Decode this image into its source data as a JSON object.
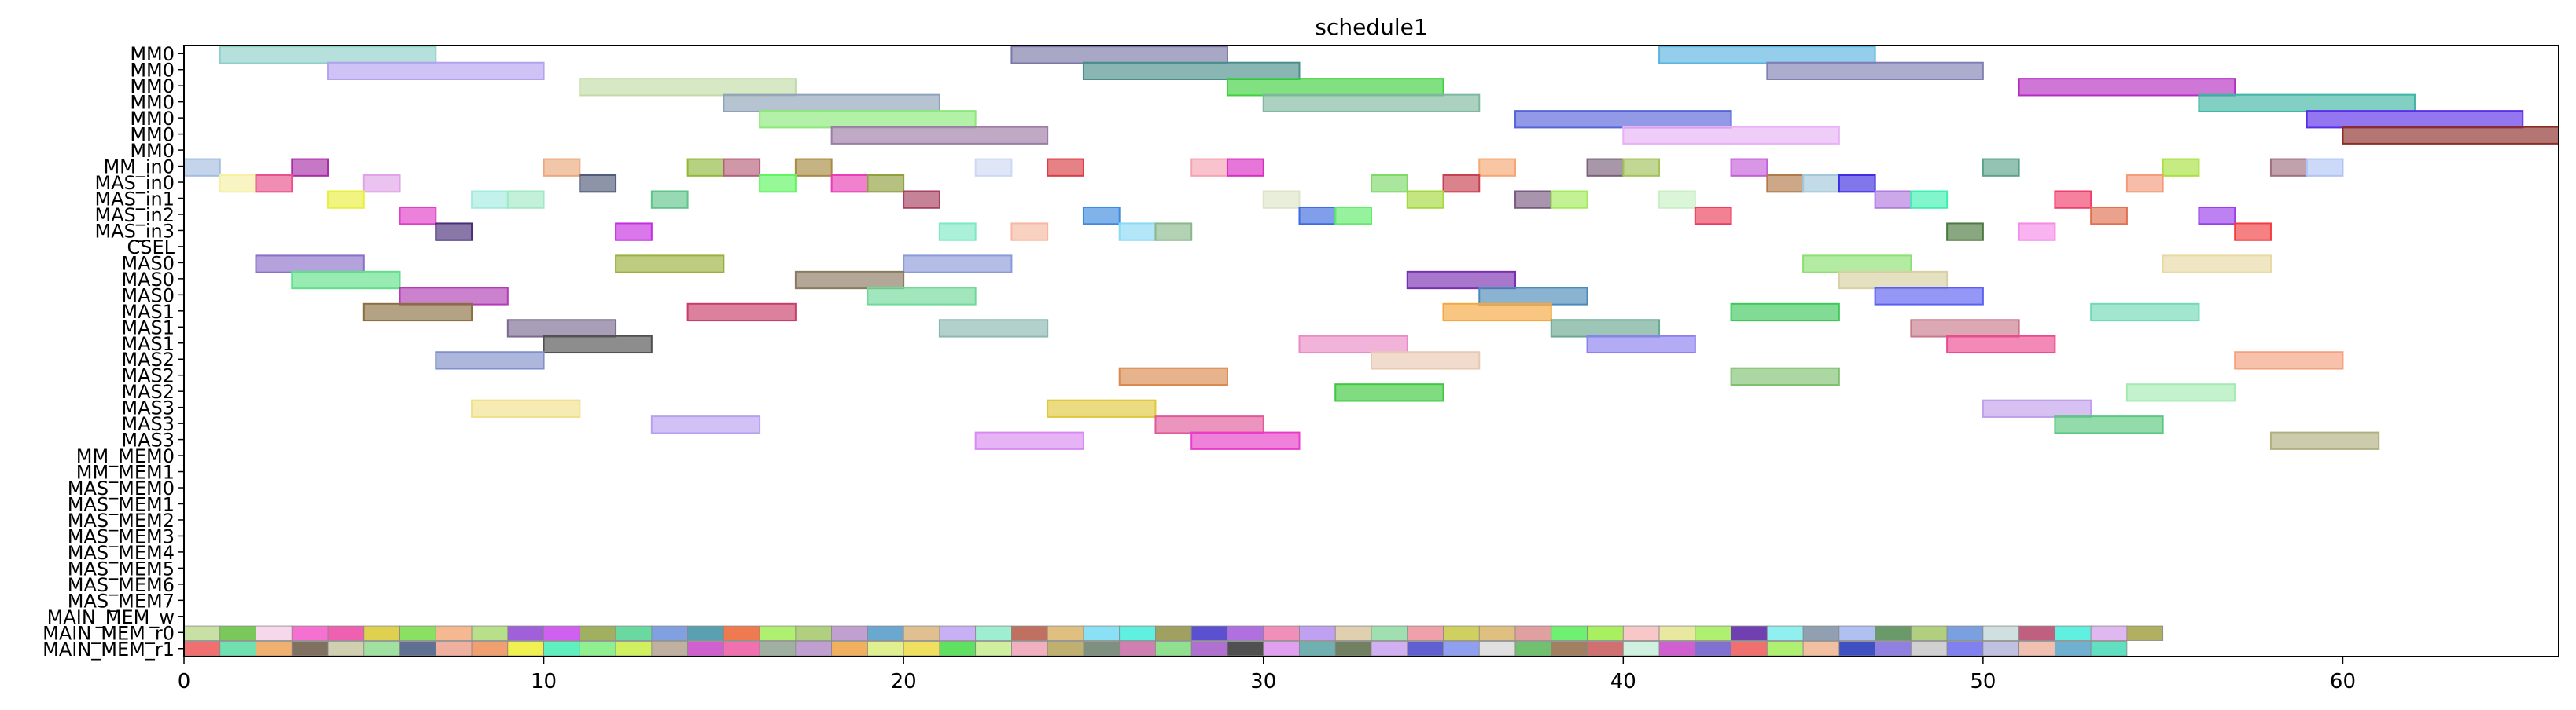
{
  "chart_data": {
    "type": "gantt",
    "title": "schedule1",
    "xlabel": "",
    "ylabel": "",
    "xlim": [
      0,
      66
    ],
    "x_ticks": [
      0,
      10,
      20,
      30,
      40,
      50,
      60
    ],
    "grid": false,
    "rows": [
      "MM0",
      "MM0",
      "MM0",
      "MM0",
      "MM0",
      "MM0",
      "MM0",
      "MM_in0",
      "MAS_in0",
      "MAS_in1",
      "MAS_in2",
      "MAS_in3",
      "CSEL",
      "MAS0",
      "MAS0",
      "MAS0",
      "MAS1",
      "MAS1",
      "MAS1",
      "MAS2",
      "MAS2",
      "MAS2",
      "MAS3",
      "MAS3",
      "MAS3",
      "MM_MEM0",
      "MM_MEM1",
      "MAS_MEM0",
      "MAS_MEM1",
      "MAS_MEM2",
      "MAS_MEM3",
      "MAS_MEM4",
      "MAS_MEM5",
      "MAS_MEM6",
      "MAS_MEM7",
      "MAIN_MEM_w",
      "MAIN_MEM_r0",
      "MAIN_MEM_r1"
    ],
    "tasks": [
      {
        "row": 0,
        "start": 1,
        "end": 7,
        "color": "#8ecfc9"
      },
      {
        "row": 0,
        "start": 23,
        "end": 29,
        "color": "#7a78a8"
      },
      {
        "row": 0,
        "start": 41,
        "end": 47,
        "color": "#5ab4e0"
      },
      {
        "row": 1,
        "start": 4,
        "end": 10,
        "color": "#b3a3ee"
      },
      {
        "row": 1,
        "start": 25,
        "end": 31,
        "color": "#4a8f8a"
      },
      {
        "row": 1,
        "start": 44,
        "end": 50,
        "color": "#8080b4"
      },
      {
        "row": 2,
        "start": 11,
        "end": 17,
        "color": "#c2dba6"
      },
      {
        "row": 2,
        "start": 29,
        "end": 35,
        "color": "#3dd13d"
      },
      {
        "row": 2,
        "start": 51,
        "end": 57,
        "color": "#b52ec2"
      },
      {
        "row": 3,
        "start": 15,
        "end": 21,
        "color": "#8fa3b8"
      },
      {
        "row": 3,
        "start": 30,
        "end": 36,
        "color": "#7fb8a0"
      },
      {
        "row": 3,
        "start": 56,
        "end": 62,
        "color": "#3fb5a3"
      },
      {
        "row": 4,
        "start": 16,
        "end": 22,
        "color": "#8be87a"
      },
      {
        "row": 4,
        "start": 37,
        "end": 43,
        "color": "#5763d9"
      },
      {
        "row": 4,
        "start": 59,
        "end": 65,
        "color": "#5a2ee8"
      },
      {
        "row": 5,
        "start": 18,
        "end": 24,
        "color": "#9c7ba6"
      },
      {
        "row": 5,
        "start": 40,
        "end": 46,
        "color": "#e8b0f5"
      },
      {
        "row": 5,
        "start": 60,
        "end": 66,
        "color": "#8c2c26"
      },
      {
        "row": 7,
        "start": 0,
        "end": 1,
        "color": "#a3bde0"
      },
      {
        "row": 7,
        "start": 3,
        "end": 4,
        "color": "#a82ea8"
      },
      {
        "row": 7,
        "start": 10,
        "end": 11,
        "color": "#eba87a"
      },
      {
        "row": 7,
        "start": 14,
        "end": 15,
        "color": "#8fb83a"
      },
      {
        "row": 7,
        "start": 15,
        "end": 16,
        "color": "#b5607a"
      },
      {
        "row": 7,
        "start": 17,
        "end": 18,
        "color": "#a88a40"
      },
      {
        "row": 7,
        "start": 22,
        "end": 23,
        "color": "#ccd9f5"
      },
      {
        "row": 7,
        "start": 24,
        "end": 25,
        "color": "#d93d45"
      },
      {
        "row": 7,
        "start": 28,
        "end": 29,
        "color": "#f5a3b0"
      },
      {
        "row": 7,
        "start": 29,
        "end": 30,
        "color": "#d92ec4"
      },
      {
        "row": 7,
        "start": 36,
        "end": 37,
        "color": "#f5a870"
      },
      {
        "row": 7,
        "start": 39,
        "end": 40,
        "color": "#7a607a"
      },
      {
        "row": 7,
        "start": 40,
        "end": 41,
        "color": "#a3c25a"
      },
      {
        "row": 7,
        "start": 43,
        "end": 44,
        "color": "#c45ed9"
      },
      {
        "row": 7,
        "start": 50,
        "end": 51,
        "color": "#5aa38a"
      },
      {
        "row": 7,
        "start": 55,
        "end": 56,
        "color": "#a8e03d"
      },
      {
        "row": 7,
        "start": 58,
        "end": 59,
        "color": "#a07080"
      },
      {
        "row": 7,
        "start": 59,
        "end": 60,
        "color": "#b0c4f5"
      },
      {
        "row": 8,
        "start": 1,
        "end": 2,
        "color": "#f5f0a3"
      },
      {
        "row": 8,
        "start": 2,
        "end": 3,
        "color": "#e8508a"
      },
      {
        "row": 8,
        "start": 5,
        "end": 6,
        "color": "#e0a3e8"
      },
      {
        "row": 8,
        "start": 11,
        "end": 12,
        "color": "#505a7a"
      },
      {
        "row": 8,
        "start": 16,
        "end": 17,
        "color": "#60f560"
      },
      {
        "row": 8,
        "start": 18,
        "end": 19,
        "color": "#e83db5"
      },
      {
        "row": 8,
        "start": 19,
        "end": 20,
        "color": "#8fa03d"
      },
      {
        "row": 8,
        "start": 33,
        "end": 34,
        "color": "#7ed96a"
      },
      {
        "row": 8,
        "start": 35,
        "end": 36,
        "color": "#c84050"
      },
      {
        "row": 8,
        "start": 44,
        "end": 45,
        "color": "#b07a4a"
      },
      {
        "row": 8,
        "start": 45,
        "end": 46,
        "color": "#a3c8d9"
      },
      {
        "row": 8,
        "start": 46,
        "end": 47,
        "color": "#3d2ee0"
      },
      {
        "row": 8,
        "start": 54,
        "end": 55,
        "color": "#f59a7a"
      },
      {
        "row": 9,
        "start": 4,
        "end": 5,
        "color": "#e8f03d"
      },
      {
        "row": 9,
        "start": 8,
        "end": 9,
        "color": "#a3ebe0"
      },
      {
        "row": 9,
        "start": 9,
        "end": 10,
        "color": "#a3e8c4"
      },
      {
        "row": 9,
        "start": 13,
        "end": 14,
        "color": "#5ec48a"
      },
      {
        "row": 9,
        "start": 20,
        "end": 21,
        "color": "#a84060"
      },
      {
        "row": 9,
        "start": 30,
        "end": 31,
        "color": "#dde5c8"
      },
      {
        "row": 9,
        "start": 34,
        "end": 35,
        "color": "#a3d93d"
      },
      {
        "row": 9,
        "start": 37,
        "end": 38,
        "color": "#7a5a80"
      },
      {
        "row": 9,
        "start": 38,
        "end": 39,
        "color": "#a3eb5a"
      },
      {
        "row": 9,
        "start": 41,
        "end": 42,
        "color": "#c8f0c4"
      },
      {
        "row": 9,
        "start": 47,
        "end": 48,
        "color": "#b07ae0"
      },
      {
        "row": 9,
        "start": 48,
        "end": 49,
        "color": "#3df0b0"
      },
      {
        "row": 9,
        "start": 52,
        "end": 53,
        "color": "#f03d6a"
      },
      {
        "row": 10,
        "start": 6,
        "end": 7,
        "color": "#e03dc8"
      },
      {
        "row": 10,
        "start": 25,
        "end": 26,
        "color": "#3d8ae0"
      },
      {
        "row": 10,
        "start": 31,
        "end": 32,
        "color": "#3d6ae0"
      },
      {
        "row": 10,
        "start": 32,
        "end": 33,
        "color": "#60eb6a"
      },
      {
        "row": 10,
        "start": 42,
        "end": 43,
        "color": "#eb3d5a"
      },
      {
        "row": 10,
        "start": 53,
        "end": 54,
        "color": "#e07050"
      },
      {
        "row": 10,
        "start": 56,
        "end": 57,
        "color": "#9a3deb"
      },
      {
        "row": 11,
        "start": 7,
        "end": 8,
        "color": "#4a2e7a"
      },
      {
        "row": 11,
        "start": 12,
        "end": 13,
        "color": "#c42ee0"
      },
      {
        "row": 11,
        "start": 21,
        "end": 22,
        "color": "#7ee8c4"
      },
      {
        "row": 11,
        "start": 23,
        "end": 24,
        "color": "#f5b8a0"
      },
      {
        "row": 11,
        "start": 26,
        "end": 27,
        "color": "#8ad9f5"
      },
      {
        "row": 11,
        "start": 27,
        "end": 28,
        "color": "#8ab88a"
      },
      {
        "row": 11,
        "start": 49,
        "end": 50,
        "color": "#4a7a3d"
      },
      {
        "row": 11,
        "start": 51,
        "end": 52,
        "color": "#f58ae8"
      },
      {
        "row": 11,
        "start": 57,
        "end": 58,
        "color": "#f03d40"
      },
      {
        "row": 13,
        "start": 2,
        "end": 5,
        "color": "#8a70c8"
      },
      {
        "row": 13,
        "start": 12,
        "end": 15,
        "color": "#9ab03d"
      },
      {
        "row": 13,
        "start": 20,
        "end": 23,
        "color": "#8a9ad9"
      },
      {
        "row": 13,
        "start": 45,
        "end": 48,
        "color": "#8ae070"
      },
      {
        "row": 13,
        "start": 55,
        "end": 58,
        "color": "#e8d9a3"
      },
      {
        "row": 14,
        "start": 3,
        "end": 6,
        "color": "#60e08a"
      },
      {
        "row": 14,
        "start": 17,
        "end": 20,
        "color": "#8a7a60"
      },
      {
        "row": 14,
        "start": 34,
        "end": 37,
        "color": "#7a2eb0"
      },
      {
        "row": 14,
        "start": 46,
        "end": 49,
        "color": "#d9d0a3"
      },
      {
        "row": 15,
        "start": 6,
        "end": 9,
        "color": "#b03db5"
      },
      {
        "row": 15,
        "start": 19,
        "end": 22,
        "color": "#70d99a"
      },
      {
        "row": 15,
        "start": 36,
        "end": 39,
        "color": "#4a8ab8"
      },
      {
        "row": 15,
        "start": 47,
        "end": 50,
        "color": "#5a60f0"
      },
      {
        "row": 16,
        "start": 5,
        "end": 8,
        "color": "#8a7040"
      },
      {
        "row": 16,
        "start": 14,
        "end": 17,
        "color": "#c83d6a"
      },
      {
        "row": 16,
        "start": 35,
        "end": 38,
        "color": "#f5a83d"
      },
      {
        "row": 16,
        "start": 43,
        "end": 46,
        "color": "#3dc85a"
      },
      {
        "row": 16,
        "start": 53,
        "end": 56,
        "color": "#70d9b5"
      },
      {
        "row": 17,
        "start": 9,
        "end": 12,
        "color": "#7a6a90"
      },
      {
        "row": 17,
        "start": 21,
        "end": 24,
        "color": "#8ab8b0"
      },
      {
        "row": 17,
        "start": 38,
        "end": 41,
        "color": "#6aa890"
      },
      {
        "row": 17,
        "start": 48,
        "end": 51,
        "color": "#c87a8a"
      },
      {
        "row": 18,
        "start": 10,
        "end": 13,
        "color": "#505050"
      },
      {
        "row": 18,
        "start": 31,
        "end": 34,
        "color": "#eb8ac8"
      },
      {
        "row": 18,
        "start": 39,
        "end": 42,
        "color": "#8a80f0"
      },
      {
        "row": 18,
        "start": 49,
        "end": 52,
        "color": "#eb4a90"
      },
      {
        "row": 19,
        "start": 7,
        "end": 10,
        "color": "#8090c8"
      },
      {
        "row": 19,
        "start": 33,
        "end": 36,
        "color": "#e8c8b0"
      },
      {
        "row": 19,
        "start": 57,
        "end": 60,
        "color": "#f5a080"
      },
      {
        "row": 20,
        "start": 26,
        "end": 29,
        "color": "#d98a50"
      },
      {
        "row": 20,
        "start": 43,
        "end": 46,
        "color": "#80c070"
      },
      {
        "row": 21,
        "start": 32,
        "end": 35,
        "color": "#3dc83d"
      },
      {
        "row": 21,
        "start": 54,
        "end": 57,
        "color": "#a3ebb0"
      },
      {
        "row": 22,
        "start": 8,
        "end": 11,
        "color": "#f0e08a"
      },
      {
        "row": 22,
        "start": 24,
        "end": 27,
        "color": "#e0c83d"
      },
      {
        "row": 22,
        "start": 50,
        "end": 53,
        "color": "#c0a0eb"
      },
      {
        "row": 23,
        "start": 13,
        "end": 16,
        "color": "#b8a0f0"
      },
      {
        "row": 23,
        "start": 27,
        "end": 30,
        "color": "#e05a9a"
      },
      {
        "row": 23,
        "start": 52,
        "end": 55,
        "color": "#5ac880"
      },
      {
        "row": 24,
        "start": 22,
        "end": 25,
        "color": "#d98af0"
      },
      {
        "row": 24,
        "start": 28,
        "end": 31,
        "color": "#e83dc8"
      },
      {
        "row": 24,
        "start": 58,
        "end": 61,
        "color": "#b0b080"
      }
    ],
    "mem_rows": {
      "r0_row": 36,
      "r0_colors": [
        "#c8e0a3",
        "#7ac85a",
        "#f5d9eb",
        "#f570d0",
        "#f060b0",
        "#e0d050",
        "#8ae060",
        "#f5b890",
        "#b8e08a",
        "#a060d9",
        "#d060f0",
        "#a0b060",
        "#6ad9a0",
        "#80a0e0",
        "#5aa0b0",
        "#f07a50",
        "#b0f070",
        "#b0d080",
        "#c0a0d0",
        "#6aa8d0",
        "#e0c090",
        "#c8b0f5",
        "#a0eed0",
        "#c07060",
        "#e0c080",
        "#8ae0f5",
        "#60f0e0",
        "#a0a060",
        "#5a50d0",
        "#b070e0",
        "#f090b8",
        "#c0a0f0",
        "#e0d0b0",
        "#a0e0b0",
        "#f0a0a8",
        "#d0d060",
        "#e0c080",
        "#e0a0a0",
        "#70f070",
        "#a8f060",
        "#f8c8c8",
        "#e8e8a0",
        "#b0f070",
        "#7040b0",
        "#90f0f0",
        "#90a0b0",
        "#b0c0f0",
        "#6a9a6a",
        "#b0d080",
        "#7aa0e0",
        "#d0e0e0",
        "#c06080",
        "#60f0e0",
        "#e0b8f0",
        "#b0b060"
      ],
      "r1_colors": [
        "#f07070",
        "#70e0b0",
        "#f0b070",
        "#807060",
        "#d0d0b0",
        "#a0e0a0",
        "#607090",
        "#f0b0a0",
        "#f0a070",
        "#f0f050",
        "#60f0c0",
        "#90f090",
        "#d0f060",
        "#c0b0a0",
        "#d060d0",
        "#f070b0",
        "#a0b0a0",
        "#c0a0d0",
        "#f0b060",
        "#e0f090",
        "#f0e060",
        "#60e060",
        "#d0f0a0",
        "#f0b0c0",
        "#c0b070",
        "#809080",
        "#d080b0",
        "#90e090",
        "#b070d0",
        "#505050",
        "#e0a0f0",
        "#70b0b0",
        "#708060",
        "#d0b0f0",
        "#6060d0",
        "#90a0f0",
        "#e0e0e0",
        "#70c070",
        "#a08060",
        "#d07070",
        "#d0f0e0",
        "#d060d0",
        "#8070d0",
        "#f07070",
        "#b0f070",
        "#f0c0a0",
        "#4050c0",
        "#9080e0",
        "#d0d0d0",
        "#8080f0",
        "#c0c0e0",
        "#f0c0b0",
        "#70b0d0",
        "#60e0c0"
      ]
    }
  }
}
